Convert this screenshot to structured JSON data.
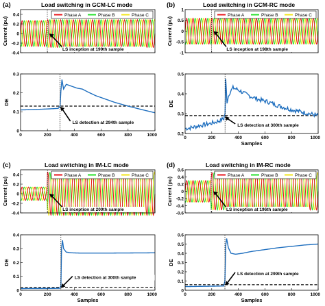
{
  "colors": {
    "phase_a": "#e8141a",
    "phase_b": "#27e02b",
    "phase_c": "#f2e618",
    "de": "#1f6fbf",
    "threshold": "#000000"
  },
  "chart_data": [
    {
      "panel": "(a)",
      "title": "Load switching in GCM-LC mode",
      "type": "line",
      "current": {
        "ylabel": "Current (pu)",
        "ylim": [
          -0.4,
          0.5
        ],
        "yticks": [
          "0.4",
          "0.2",
          "0",
          "-0.2",
          "-0.4"
        ],
        "amp_before": 0.27,
        "amp_after": 0.29,
        "cycles": 21,
        "legend": [
          "Phase A",
          "Phase B",
          "Phase C"
        ],
        "event_sample": 199,
        "annotation": "LS inception at 199th sample"
      },
      "de": {
        "ylabel": "DE",
        "ylim": [
          0,
          0.3
        ],
        "yticks": [
          "0.3",
          "0.2",
          "0.1",
          "0"
        ],
        "xlabel": "",
        "xticks": [
          "0",
          "200",
          "400",
          "600",
          "800",
          "1000"
        ],
        "threshold": 0.13,
        "points": [
          [
            1,
            0.11
          ],
          [
            100,
            0.112
          ],
          [
            200,
            0.115
          ],
          [
            280,
            0.118
          ],
          [
            294,
            0.13
          ],
          [
            300,
            0.21
          ],
          [
            308,
            0.27
          ],
          [
            320,
            0.22
          ],
          [
            340,
            0.245
          ],
          [
            380,
            0.235
          ],
          [
            420,
            0.225
          ],
          [
            460,
            0.22
          ],
          [
            500,
            0.205
          ],
          [
            560,
            0.185
          ],
          [
            620,
            0.17
          ],
          [
            700,
            0.15
          ],
          [
            800,
            0.13
          ],
          [
            900,
            0.112
          ],
          [
            1000,
            0.095
          ]
        ],
        "detection_sample": 294,
        "annotation": "LS detection at 294th sample"
      }
    },
    {
      "panel": "(b)",
      "title": "Load switching in GCM-RC mode",
      "type": "line",
      "current": {
        "ylabel": "Current (pu)",
        "ylim": [
          -1,
          1
        ],
        "yticks": [
          "1",
          "0.5",
          "0",
          "-0.5",
          "-1"
        ],
        "amp_before": 0.6,
        "amp_after": 0.6,
        "cycles": 21,
        "legend": [
          "Phase A",
          "Phase B",
          "Phase C"
        ],
        "event_sample": 198,
        "annotation": "LS inception at 198th sample"
      },
      "de": {
        "ylabel": "DE",
        "ylim": [
          0.2,
          0.5
        ],
        "yticks": [
          "0.5",
          "0.4",
          "0.3",
          "0.2"
        ],
        "xlabel": "Samples",
        "xticks": [
          "0",
          "200",
          "400",
          "600",
          "800",
          "1000"
        ],
        "threshold": 0.29,
        "points": [
          [
            1,
            0.225
          ],
          [
            50,
            0.23
          ],
          [
            100,
            0.238
          ],
          [
            150,
            0.245
          ],
          [
            200,
            0.252
          ],
          [
            250,
            0.262
          ],
          [
            290,
            0.275
          ],
          [
            300,
            0.3
          ],
          [
            305,
            0.47
          ],
          [
            315,
            0.36
          ],
          [
            330,
            0.4
          ],
          [
            360,
            0.43
          ],
          [
            400,
            0.42
          ],
          [
            450,
            0.4
          ],
          [
            500,
            0.385
          ],
          [
            560,
            0.37
          ],
          [
            620,
            0.36
          ],
          [
            700,
            0.34
          ],
          [
            800,
            0.32
          ],
          [
            900,
            0.305
          ],
          [
            1000,
            0.29
          ]
        ],
        "detection_sample": 300,
        "annotation": "LS detection at 300th sample"
      }
    },
    {
      "panel": "(c)",
      "title": "Load switching in IM-LC mode",
      "type": "line",
      "current": {
        "ylabel": "Current (pu)",
        "ylim": [
          -0.4,
          0.5
        ],
        "yticks": [
          "0.4",
          "0.2",
          "0",
          "-0.2",
          "-0.4"
        ],
        "amp_before": 0.14,
        "amp_after": 0.45,
        "cycles": 21,
        "legend": [
          "Phase A",
          "Phase B",
          "Phase C"
        ],
        "event_sample": 200,
        "annotation": "LS inception at 200th sample"
      },
      "de": {
        "ylabel": "DE",
        "ylim": [
          0,
          0.4
        ],
        "yticks": [
          "0.4",
          "0.3",
          "0.2",
          "0.1",
          "0"
        ],
        "xlabel": "Samples",
        "xticks": [
          "0",
          "200",
          "400",
          "600",
          "800",
          "1000"
        ],
        "threshold": 0.022,
        "points": [
          [
            1,
            0.012
          ],
          [
            100,
            0.013
          ],
          [
            200,
            0.013
          ],
          [
            290,
            0.014
          ],
          [
            300,
            0.03
          ],
          [
            305,
            0.3
          ],
          [
            312,
            0.36
          ],
          [
            320,
            0.3
          ],
          [
            340,
            0.275
          ],
          [
            380,
            0.27
          ],
          [
            450,
            0.268
          ],
          [
            600,
            0.268
          ],
          [
            800,
            0.269
          ],
          [
            1000,
            0.27
          ]
        ],
        "detection_sample": 300,
        "annotation": "LS detection at 300th sample"
      }
    },
    {
      "panel": "(d)",
      "title": "Load switching in IM-RC mode",
      "type": "line",
      "current": {
        "ylabel": "Current (pu)",
        "ylim": [
          -0.6,
          0.6
        ],
        "yticks": [
          "0.6",
          "0.4",
          "0.2",
          "0",
          "-0.2",
          "-0.4",
          "-0.6"
        ],
        "amp_before": 0.3,
        "amp_after": 0.52,
        "cycles": 21,
        "legend": [
          "Phase A",
          "Phase B",
          "Phase C"
        ],
        "event_sample": 196,
        "annotation": "LS inception at 196th sample"
      },
      "de": {
        "ylabel": "DE",
        "ylim": [
          0,
          0.6
        ],
        "yticks": [
          "0.6",
          "0.5",
          "0.4",
          "0.3",
          "0.2",
          "0.1",
          "0"
        ],
        "xlabel": "Samples",
        "xticks": [
          "0",
          "200",
          "400",
          "600",
          "800",
          "1000"
        ],
        "threshold": 0.06,
        "points": [
          [
            1,
            0.04
          ],
          [
            100,
            0.042
          ],
          [
            200,
            0.044
          ],
          [
            290,
            0.046
          ],
          [
            299,
            0.1
          ],
          [
            305,
            0.48
          ],
          [
            312,
            0.56
          ],
          [
            325,
            0.46
          ],
          [
            345,
            0.4
          ],
          [
            380,
            0.39
          ],
          [
            430,
            0.4
          ],
          [
            500,
            0.42
          ],
          [
            600,
            0.44
          ],
          [
            700,
            0.46
          ],
          [
            800,
            0.475
          ],
          [
            900,
            0.49
          ],
          [
            1000,
            0.5
          ]
        ],
        "detection_sample": 299,
        "annotation": "LS detection at 299th sample"
      }
    }
  ]
}
